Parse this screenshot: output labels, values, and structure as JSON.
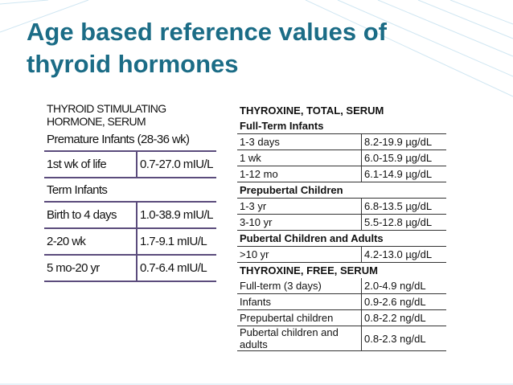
{
  "title": "Age based reference values of thyroid hormones",
  "left_table": {
    "rows": [
      {
        "title": "THYROID STIMULATING HORMONE, SERUM"
      },
      {
        "heading": "Premature Infants (28-36 wk)"
      },
      {
        "cells": [
          "1st wk of life",
          "0.7-27.0 mIU/L"
        ]
      },
      {
        "heading": "Term Infants"
      },
      {
        "cells": [
          "Birth to 4 days",
          "1.0-38.9 mIU/L"
        ]
      },
      {
        "cells": [
          "2-20 wk",
          "1.7-9.1 mIU/L"
        ]
      },
      {
        "cells": [
          "5 mo-20 yr",
          "0.7-6.4 mIU/L"
        ]
      }
    ]
  },
  "right_table": {
    "rows": [
      {
        "title": "THYROXINE, TOTAL, SERUM"
      },
      {
        "heading": "Full-Term Infants"
      },
      {
        "cells": [
          "1-3 days",
          "8.2-19.9 µg/dL"
        ]
      },
      {
        "cells": [
          "1 wk",
          "6.0-15.9 µg/dL"
        ]
      },
      {
        "cells": [
          "1-12 mo",
          "6.1-14.9 µg/dL"
        ]
      },
      {
        "heading": "Prepubertal Children"
      },
      {
        "cells": [
          "1-3 yr",
          "6.8-13.5 µg/dL"
        ]
      },
      {
        "cells": [
          "3-10 yr",
          "5.5-12.8 µg/dL"
        ]
      },
      {
        "heading": "Pubertal Children and Adults"
      },
      {
        "cells": [
          ">10 yr",
          "4.2-13.0 µg/dL"
        ]
      },
      {
        "title": "THYROXINE, FREE, SERUM"
      },
      {
        "cells": [
          "Full-term (3 days)",
          "2.0-4.9 ng/dL"
        ]
      },
      {
        "cells": [
          "Infants",
          "0.9-2.6 ng/dL"
        ]
      },
      {
        "cells": [
          "Prepubertal children",
          "0.8-2.2 ng/dL"
        ]
      },
      {
        "cells": [
          "Pubertal children and adults",
          "0.8-2.3 ng/dL"
        ]
      }
    ]
  }
}
